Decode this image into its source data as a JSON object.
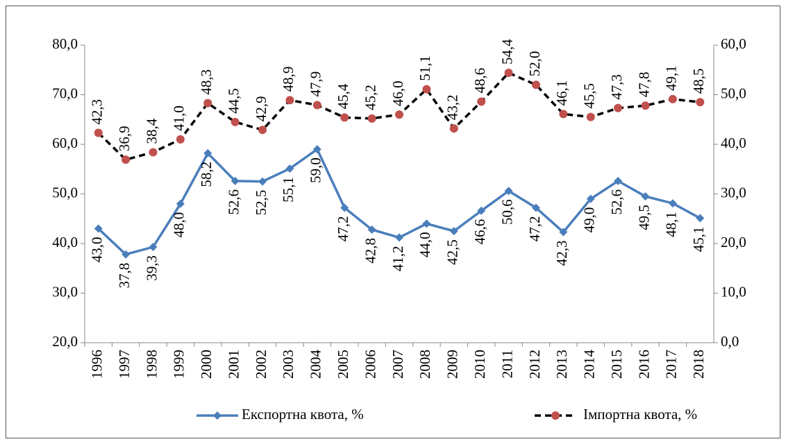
{
  "chart_data": {
    "type": "line",
    "categories": [
      "1996",
      "1997",
      "1998",
      "1999",
      "2000",
      "2001",
      "2002",
      "2003",
      "2004",
      "2005",
      "2006",
      "2007",
      "2008",
      "2009",
      "2010",
      "2011",
      "2012",
      "2013",
      "2014",
      "2015",
      "2016",
      "2017",
      "2018"
    ],
    "series": [
      {
        "name": "Експортна квота, %",
        "color": "#4a7ebb",
        "marker": "diamond",
        "dash": false,
        "label_position": "below",
        "values": [
          43.0,
          37.8,
          39.3,
          48.0,
          58.2,
          52.6,
          52.5,
          55.1,
          59.0,
          47.2,
          42.8,
          41.2,
          44.0,
          42.5,
          46.6,
          50.6,
          47.2,
          42.3,
          49.0,
          52.6,
          49.5,
          48.1,
          45.1
        ],
        "value_labels": [
          "43,0",
          "37,8",
          "39,3",
          "48,0",
          "58,2",
          "52,6",
          "52,5",
          "55,1",
          "59,0",
          "47,2",
          "42,8",
          "41,2",
          "44,0",
          "42,5",
          "46,6",
          "50,6",
          "47,2",
          "42,3",
          "49,0",
          "52,6",
          "49,5",
          "48,1",
          "45,1"
        ]
      },
      {
        "name": "Імпортна квота, %",
        "color": "#000000",
        "marker_color": "#c0504d",
        "marker": "circle",
        "dash": true,
        "label_position": "above",
        "axis": "y2",
        "values": [
          42.3,
          36.9,
          38.4,
          41.0,
          48.3,
          44.5,
          42.9,
          48.9,
          47.9,
          45.4,
          45.2,
          46.0,
          51.1,
          43.2,
          48.6,
          54.4,
          52.0,
          46.1,
          45.5,
          47.3,
          47.8,
          49.1,
          48.5
        ],
        "value_labels": [
          "42,3",
          "36,9",
          "38,4",
          "41,0",
          "48,3",
          "44,5",
          "42,9",
          "48,9",
          "47,9",
          "45,4",
          "45,2",
          "46,0",
          "51,1",
          "43,2",
          "48,6",
          "54,4",
          "52,0",
          "46,1",
          "45,5",
          "47,3",
          "47,8",
          "49,1",
          "48,5"
        ]
      }
    ],
    "ylim": [
      20,
      80
    ],
    "yticks": [
      {
        "value": 20,
        "label": "20,0"
      },
      {
        "value": 30,
        "label": "30,0"
      },
      {
        "value": 40,
        "label": "40,0"
      },
      {
        "value": 50,
        "label": "50,0"
      },
      {
        "value": 60,
        "label": "60,0"
      },
      {
        "value": 70,
        "label": "70,0"
      },
      {
        "value": 80,
        "label": "80,0"
      }
    ],
    "y2lim": [
      0,
      60
    ],
    "y2ticks": [
      {
        "value": 0,
        "label": "0,0"
      },
      {
        "value": 10,
        "label": "10,0"
      },
      {
        "value": 20,
        "label": "20,0"
      },
      {
        "value": 30,
        "label": "30,0"
      },
      {
        "value": 40,
        "label": "40,0"
      },
      {
        "value": 50,
        "label": "50,0"
      },
      {
        "value": 60,
        "label": "60,0"
      }
    ],
    "grid": false,
    "legend": "bottom"
  }
}
